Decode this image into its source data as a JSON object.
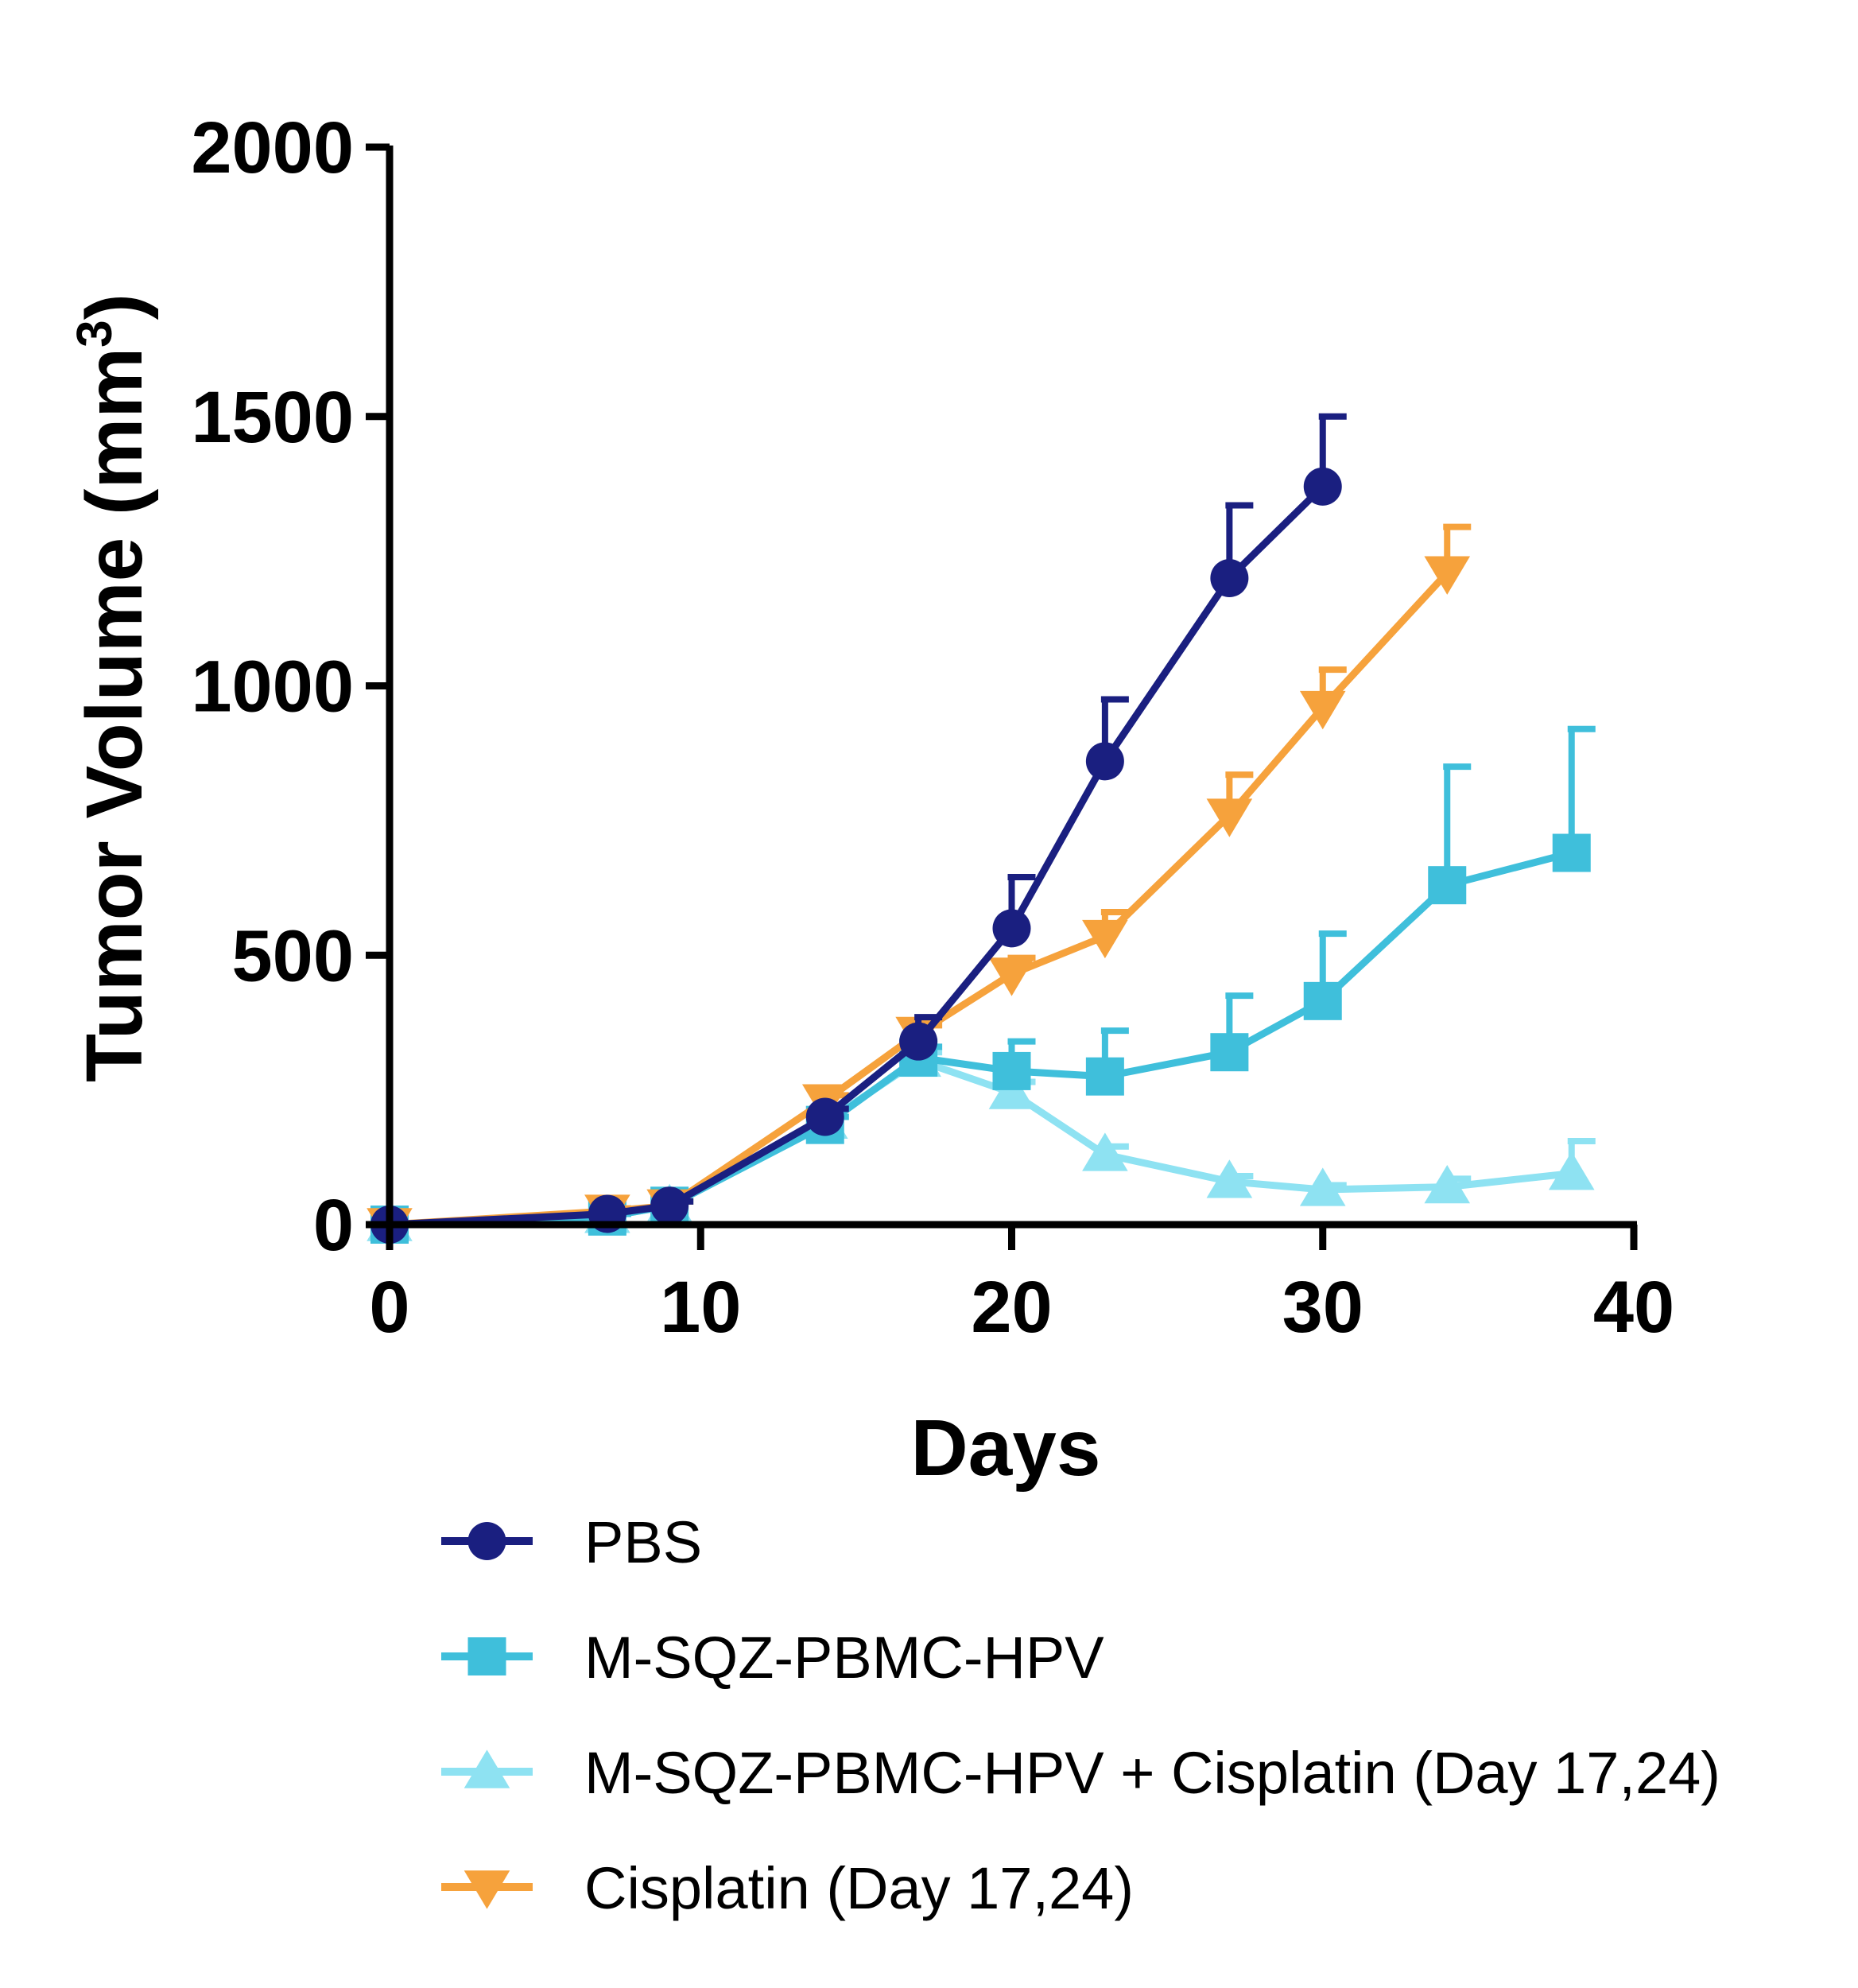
{
  "chart_data": {
    "type": "line",
    "title": "",
    "xlabel": "Days",
    "ylabel": "Tumor Volume (mm",
    "ylabel_superscript": "3",
    "ylabel_suffix": ")",
    "xlim": [
      0,
      40
    ],
    "ylim": [
      0,
      2000
    ],
    "xticks": [
      0,
      10,
      20,
      30,
      40
    ],
    "yticks": [
      0,
      500,
      1000,
      1500,
      2000
    ],
    "xtick_labels": [
      "0",
      "10",
      "20",
      "30",
      "40"
    ],
    "ytick_labels": [
      "0",
      "500",
      "1000",
      "1500",
      "2000"
    ],
    "grid": false,
    "legend_position": "bottom",
    "series": [
      {
        "name": "PBS",
        "color": "#1a1f80",
        "marker": "circle",
        "x": [
          0,
          7,
          9,
          14,
          17,
          20,
          23,
          27,
          30
        ],
        "y": [
          0,
          20,
          35,
          200,
          340,
          550,
          860,
          1200,
          1370
        ],
        "err": [
          0,
          5,
          8,
          15,
          45,
          95,
          115,
          135,
          130
        ]
      },
      {
        "name": "M-SQZ-PBMC-HPV",
        "color": "#3fbfdb",
        "marker": "square",
        "x": [
          0,
          7,
          9,
          14,
          17,
          20,
          23,
          27,
          30,
          34,
          38
        ],
        "y": [
          0,
          15,
          35,
          185,
          310,
          285,
          275,
          320,
          415,
          630,
          690
        ],
        "err": [
          0,
          5,
          8,
          15,
          20,
          55,
          85,
          105,
          125,
          220,
          230
        ]
      },
      {
        "name": "M-SQZ-PBMC-HPV + Cisplatin (Day 17,24)",
        "color": "#8ee2f2",
        "marker": "triangle-up",
        "x": [
          0,
          7,
          9,
          14,
          17,
          20,
          23,
          27,
          30,
          34,
          38
        ],
        "y": [
          0,
          15,
          35,
          190,
          305,
          245,
          130,
          80,
          65,
          70,
          95
        ],
        "err": [
          0,
          5,
          8,
          10,
          15,
          20,
          15,
          10,
          8,
          15,
          60
        ]
      },
      {
        "name": "Cisplatin (Day 17,24)",
        "color": "#f6a23c",
        "marker": "triangle-down",
        "x": [
          0,
          7,
          9,
          14,
          17,
          20,
          23,
          30,
          27,
          34
        ],
        "y": [
          0,
          25,
          35,
          230,
          355,
          465,
          535,
          960,
          760,
          1210
        ],
        "err": [
          0,
          5,
          8,
          10,
          15,
          30,
          45,
          70,
          75,
          85
        ]
      }
    ]
  }
}
